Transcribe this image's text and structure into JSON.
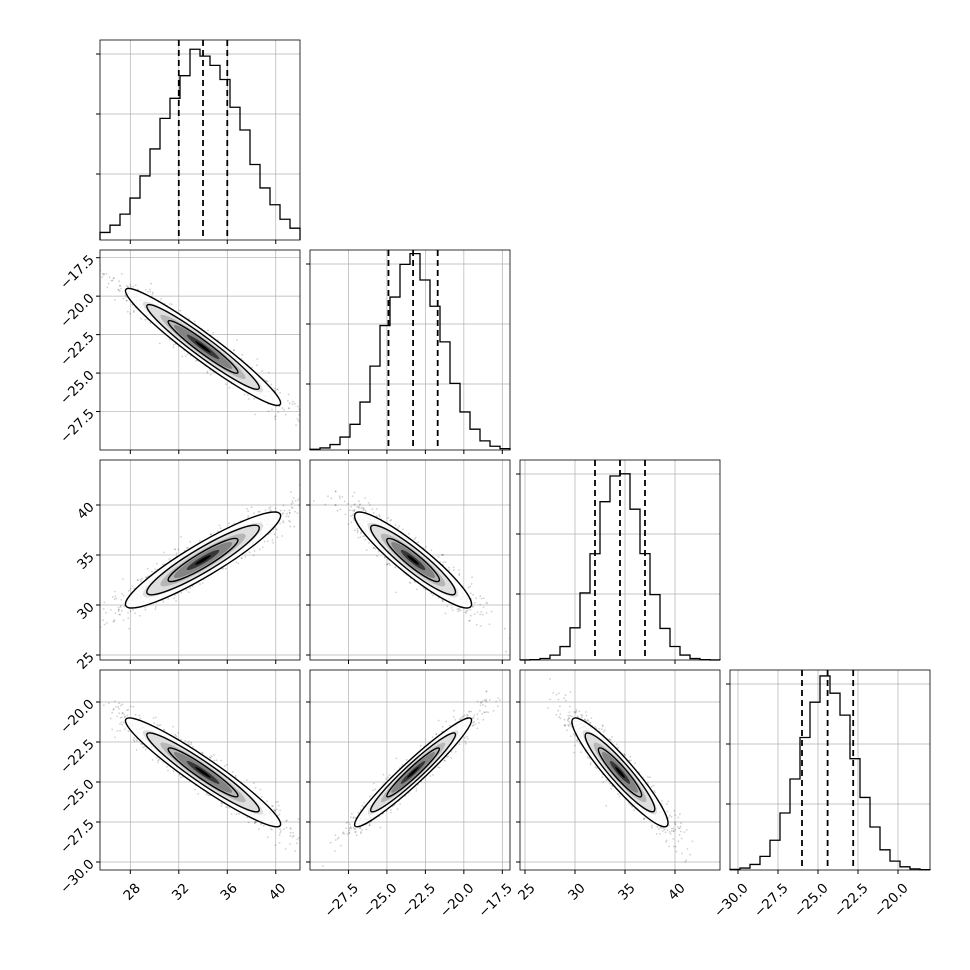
{
  "chart_data": {
    "type": "corner",
    "style": {
      "line_color": "#000000",
      "grid_color": "#b0b0b0",
      "point_color": "#000000",
      "background": "#ffffff"
    },
    "params": [
      {
        "center": 34.0,
        "sd": 3.2,
        "q16": 32.0,
        "q50": 34.0,
        "q84": 36.0,
        "range": [
          25.5,
          42.0
        ],
        "ticks": [
          28,
          32,
          36,
          40
        ],
        "tick_labels": [
          "28",
          "32",
          "36",
          "40"
        ]
      },
      {
        "center": -23.3,
        "sd": 1.9,
        "q16": -24.9,
        "q50": -23.3,
        "q84": -21.7,
        "range": [
          -30.0,
          -17.0
        ],
        "ticks": [
          -27.5,
          -25.0,
          -22.5,
          -20.0,
          -17.5
        ],
        "tick_labels": [
          "−27.5",
          "−25.0",
          "−22.5",
          "−20.0",
          "−17.5"
        ]
      },
      {
        "center": 34.5,
        "sd": 2.4,
        "q16": 32.0,
        "q50": 34.5,
        "q84": 37.0,
        "range": [
          24.5,
          44.5
        ],
        "ticks": [
          25,
          30,
          35,
          40
        ],
        "tick_labels": [
          "25",
          "30",
          "35",
          "40"
        ]
      },
      {
        "center": -24.4,
        "sd": 1.7,
        "q16": -26.0,
        "q50": -24.4,
        "q84": -22.8,
        "range": [
          -30.5,
          -18.0
        ],
        "ticks": [
          -30.0,
          -27.5,
          -25.0,
          -22.5,
          -20.0
        ],
        "tick_labels": [
          "−30.0",
          "−27.5",
          "−25.0",
          "−22.5",
          "−20.0"
        ]
      }
    ],
    "hist_y_ranges": [
      [
        0,
        0.52
      ],
      [
        0,
        0.6
      ],
      [
        0,
        0.68
      ],
      [
        0,
        0.72
      ]
    ],
    "correlations": [
      {
        "row": 1,
        "col": 0,
        "r": -0.96
      },
      {
        "row": 2,
        "col": 0,
        "r": 0.92
      },
      {
        "row": 2,
        "col": 1,
        "r": -0.92
      },
      {
        "row": 3,
        "col": 0,
        "r": -0.95
      },
      {
        "row": 3,
        "col": 1,
        "r": 0.96
      },
      {
        "row": 3,
        "col": 2,
        "r": -0.93
      }
    ],
    "quantile_lines": "dashed",
    "contour_levels": [
      0.39,
      0.86,
      0.99
    ],
    "grid": true
  }
}
